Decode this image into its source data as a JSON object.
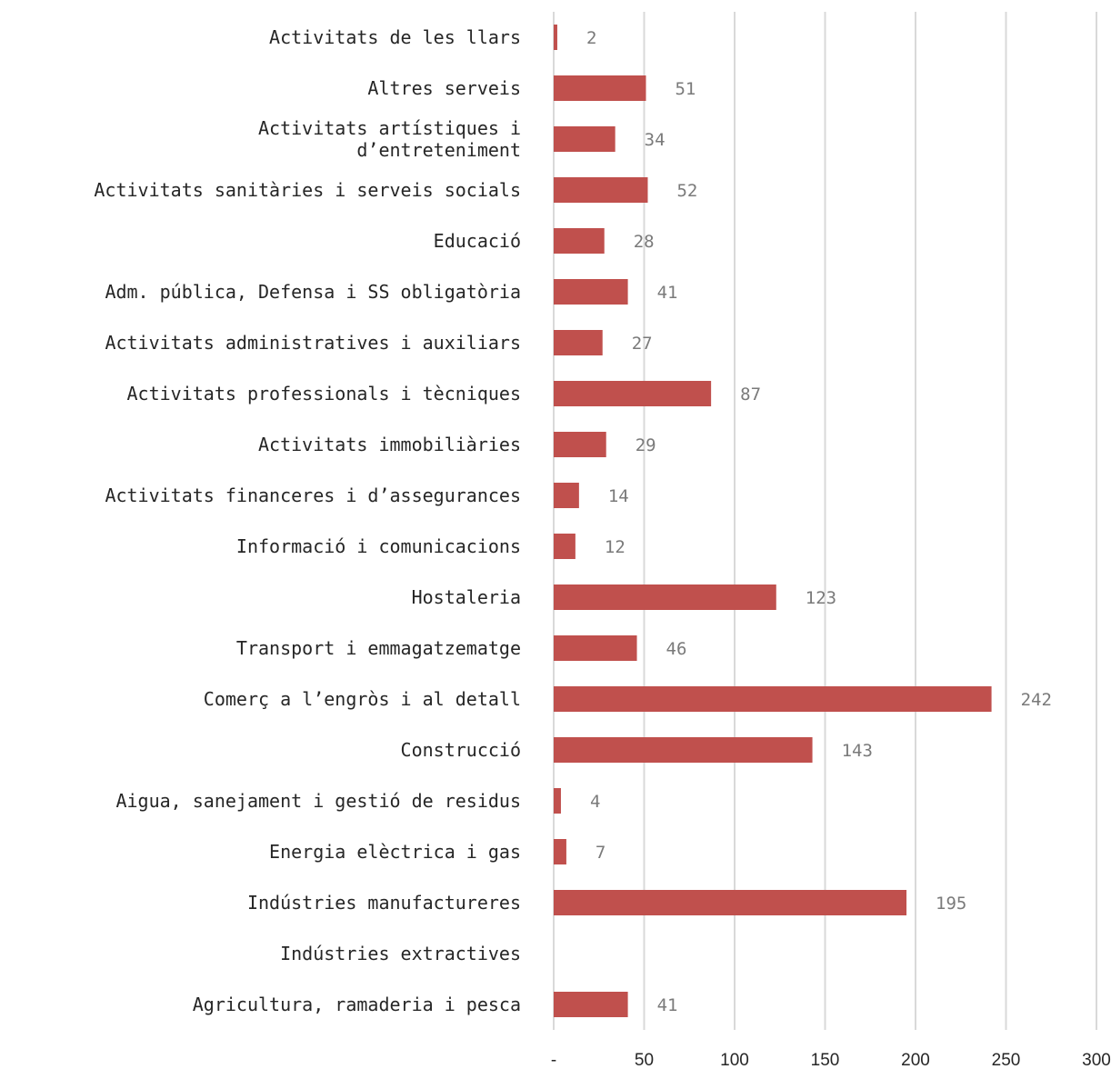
{
  "chart_data": {
    "type": "bar",
    "orientation": "horizontal",
    "categories": [
      "Activitats de les llars",
      "Altres serveis",
      [
        "Activitats artístiques i",
        "d’entreteniment"
      ],
      "Activitats sanitàries i serveis socials",
      "Educació",
      "Adm. pública, Defensa i SS obligatòria",
      "Activitats administratives i auxiliars",
      "Activitats professionals i tècniques",
      "Activitats immobiliàries",
      "Activitats financeres i d’assegurances",
      "Informació i comunicacions",
      "Hostaleria",
      "Transport i emmagatzematge",
      "Comerç a l’engròs i al detall",
      "Construcció",
      "Aigua, sanejament i gestió de residus",
      "Energia elèctrica i gas",
      "Indústries manufactureres",
      "Indústries extractives",
      "Agricultura, ramaderia i pesca"
    ],
    "values": [
      2,
      51,
      34,
      52,
      28,
      41,
      27,
      87,
      29,
      14,
      12,
      123,
      46,
      242,
      143,
      4,
      7,
      195,
      null,
      41
    ],
    "data_labels": [
      "2",
      "51",
      "34",
      "52",
      "28",
      "41",
      "27",
      "87",
      "29",
      "14",
      "12",
      "123",
      "46",
      "242",
      "143",
      "4",
      "7",
      "195",
      "",
      "41"
    ],
    "xlim": [
      0,
      300
    ],
    "x_ticks": [
      0,
      50,
      100,
      150,
      200,
      250,
      300
    ],
    "x_tick_labels": [
      "-",
      "50",
      "100",
      "150",
      "200",
      "250",
      "300"
    ],
    "grid": true,
    "colors": {
      "bar": "#c0504d",
      "grid": "#d9d9d9",
      "value_label": "#7a7a7a",
      "text": "#262626"
    }
  }
}
